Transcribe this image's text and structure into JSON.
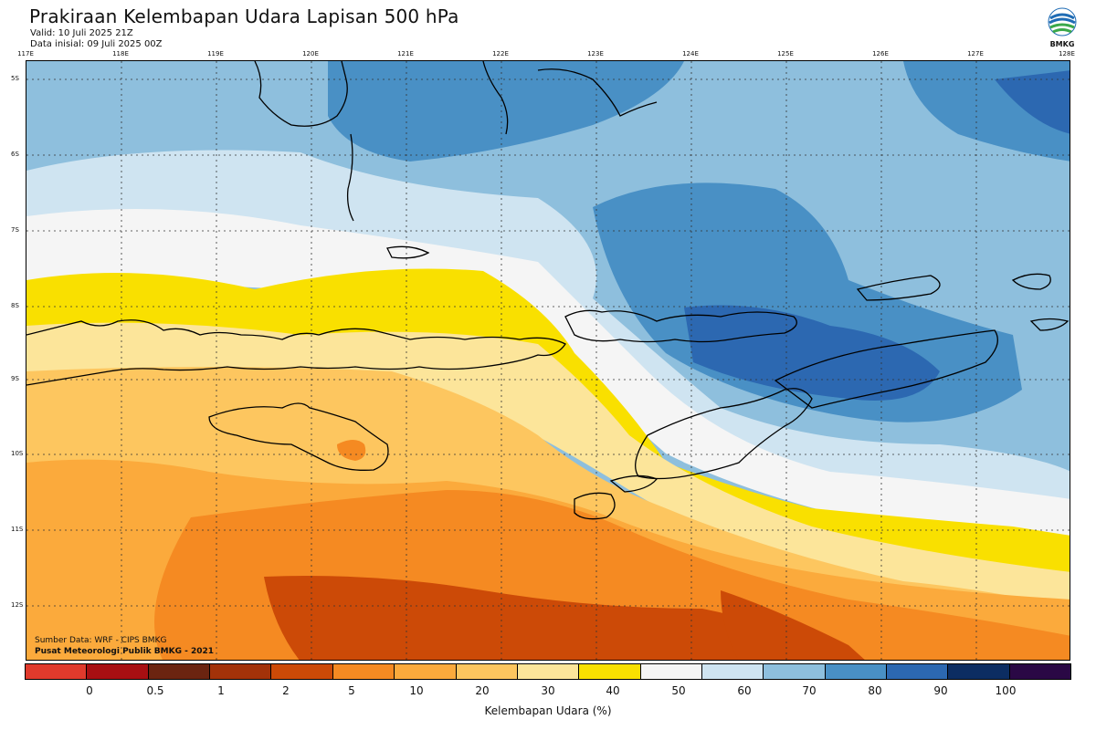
{
  "header": {
    "title": "Prakiraan Kelembapan Udara Lapisan 500 hPa",
    "valid": "Valid: 10 Juli 2025 21Z",
    "init": "Data inisial: 09 Juli 2025 00Z",
    "logo_text": "BMKG"
  },
  "map": {
    "x_ticks": [
      "117E",
      "118E",
      "119E",
      "120E",
      "121E",
      "122E",
      "123E",
      "124E",
      "125E",
      "126E",
      "127E",
      "128E"
    ],
    "y_ticks": [
      "5S",
      "6S",
      "7S",
      "8S",
      "9S",
      "10S",
      "11S",
      "12S"
    ],
    "lon_range": [
      117,
      128
    ],
    "lat_range": [
      -4.8,
      -12.7
    ]
  },
  "footer": {
    "source": "Sumber Data: WRF - CIPS BMKG",
    "credit": "Pusat Meteorologi Publik BMKG - 2021"
  },
  "legend": {
    "title": "Kelembapan Udara (%)",
    "labels": [
      "0",
      "0.5",
      "1",
      "2",
      "5",
      "10",
      "20",
      "30",
      "40",
      "50",
      "60",
      "70",
      "80",
      "90",
      "100"
    ],
    "colors": [
      "#e03a2c",
      "#a80f12",
      "#6b2410",
      "#a33209",
      "#cc4a07",
      "#f58a22",
      "#fbaa3c",
      "#fdc65f",
      "#fce59a",
      "#f9e000",
      "#f5f5f5",
      "#cfe4f1",
      "#8ebfdd",
      "#4990c5",
      "#2c68b1",
      "#0c2d62",
      "#2a0845"
    ]
  }
}
